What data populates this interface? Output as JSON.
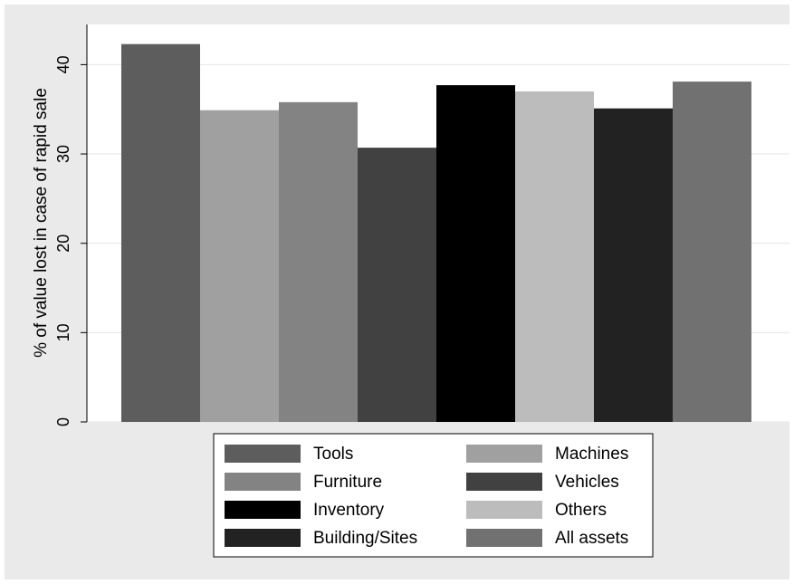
{
  "chart_data": {
    "type": "bar",
    "title": "",
    "xlabel": "",
    "ylabel": "% of value lost in case of rapid sale",
    "ylim": [
      0,
      44.5
    ],
    "yticks": [
      0,
      10,
      20,
      30,
      40
    ],
    "grid": true,
    "legend_position": "bottom",
    "legend_columns": 2,
    "series": [
      {
        "name": "Tools",
        "value": 42.3,
        "color": "#5d5d5d"
      },
      {
        "name": "Machines",
        "value": 34.9,
        "color": "#a0a0a0"
      },
      {
        "name": "Furniture",
        "value": 35.8,
        "color": "#838383"
      },
      {
        "name": "Vehicles",
        "value": 30.7,
        "color": "#414141"
      },
      {
        "name": "Inventory",
        "value": 37.7,
        "color": "#000000"
      },
      {
        "name": "Others",
        "value": 37.0,
        "color": "#bcbcbc"
      },
      {
        "name": "Building/Sites",
        "value": 35.1,
        "color": "#222222"
      },
      {
        "name": "All assets",
        "value": 38.1,
        "color": "#717171"
      }
    ]
  }
}
